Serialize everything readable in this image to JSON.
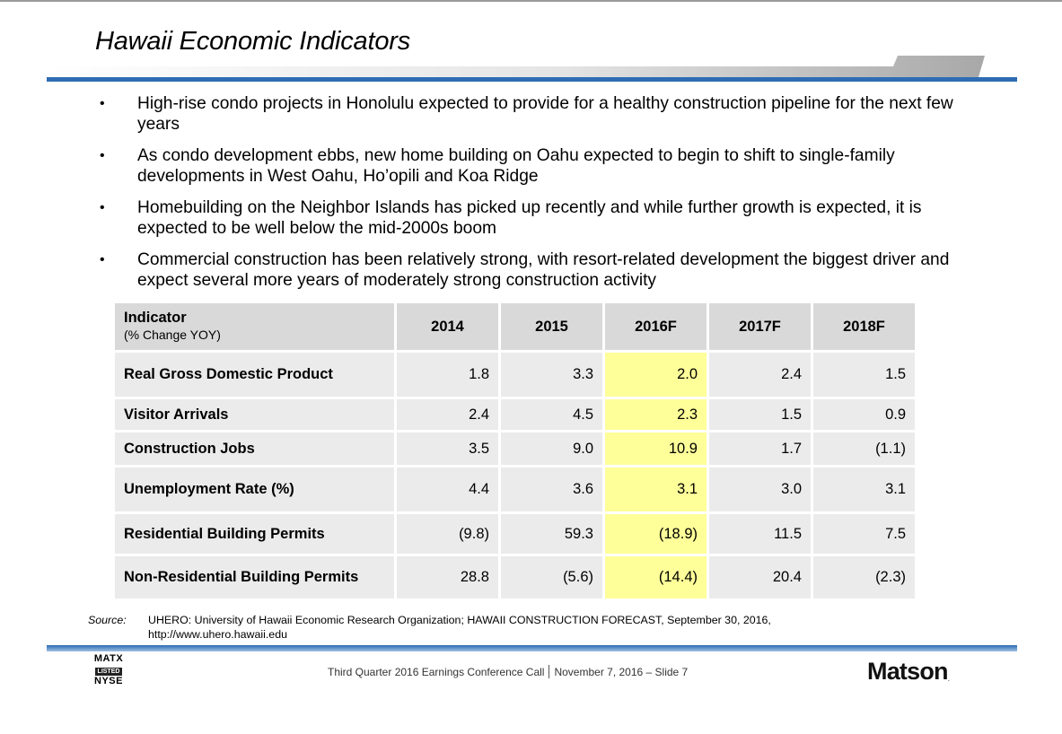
{
  "slide": {
    "title": "Hawaii Economic Indicators",
    "bullets": [
      "High-rise condo projects in Honolulu expected to provide for a healthy construction pipeline for the next few years",
      "As condo development ebbs, new home building on Oahu expected to begin to shift to single-family developments in West Oahu, Ho’opili and Koa Ridge",
      "Homebuilding on the Neighbor Islands has picked up recently and while further growth is expected, it is expected to be well below the mid-2000s boom",
      "Commercial construction has been relatively strong, with resort-related development the biggest driver and expect several more years of moderately strong construction activity"
    ],
    "bullet_glyph": "•"
  },
  "table": {
    "header_label": "Indicator",
    "header_sub": "(% Change YOY)",
    "columns": [
      "2014",
      "2015",
      "2016F",
      "2017F",
      "2018F"
    ],
    "rows": [
      {
        "label": "Real Gross Domestic Product",
        "values": [
          "1.8",
          "3.3",
          "2.0",
          "2.4",
          "1.5"
        ]
      },
      {
        "label": "Visitor Arrivals",
        "values": [
          "2.4",
          "4.5",
          "2.3",
          "1.5",
          "0.9"
        ]
      },
      {
        "label": "Construction Jobs",
        "values": [
          "3.5",
          "9.0",
          "10.9",
          "1.7",
          "(1.1)"
        ]
      },
      {
        "label": "Unemployment Rate (%)",
        "values": [
          "4.4",
          "3.6",
          "3.1",
          "3.0",
          "3.1"
        ]
      },
      {
        "label": "Residential Building Permits",
        "values": [
          "(9.8)",
          "59.3",
          "(18.9)",
          "11.5",
          "7.5"
        ]
      },
      {
        "label": "Non-Residential Building Permits",
        "values": [
          "28.8",
          "(5.6)",
          "(14.4)",
          "20.4",
          "(2.3)"
        ]
      }
    ],
    "highlight_color": "#ffff99"
  },
  "source": {
    "label": "Source:",
    "line1": "UHERO: University of Hawaii Economic Research Organization; HAWAII CONSTRUCTION FORECAST, September 30, 2016,",
    "line2": "http://www.uhero.hawaii.edu"
  },
  "footer": {
    "event": "Third Quarter 2016 Earnings Conference Call",
    "date_slide": "November 7, 2016 – Slide 7",
    "badge_top": "MATX",
    "badge_mid": "LISTED",
    "badge_bottom": "NYSE",
    "logo": "Matson",
    "logo_mark": "."
  },
  "colors": {
    "accent_blue": "#2e6db4",
    "header_gray": "#d9d9d9",
    "row_gray": "#ebebeb"
  }
}
